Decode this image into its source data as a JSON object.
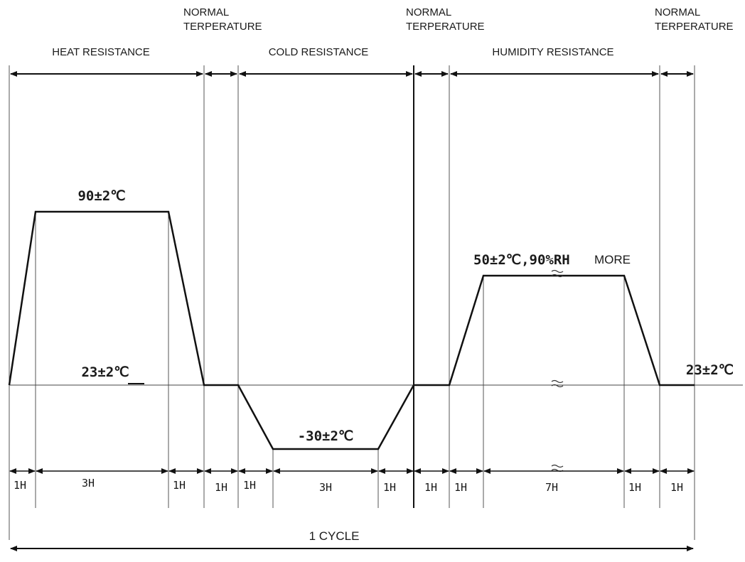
{
  "phase_labels": {
    "heat": "HEAT RESISTANCE",
    "cold": "COLD RESISTANCE",
    "humidity": "HUMIDITY RESISTANCE",
    "normal_1_line1": "NORMAL",
    "normal_1_line2": "TERPERATURE",
    "normal_2_line1": "NORMAL",
    "normal_2_line2": "TERPERATURE",
    "normal_3_line1": "NORMAL",
    "normal_3_line2": "TERPERATURE"
  },
  "temperature_labels": {
    "heat": "90±2℃",
    "ambient_left": "23±2℃",
    "cold": "-30±2℃",
    "humidity": "50±2℃,90%RH",
    "humidity_suffix": "MORE",
    "ambient_right": "23±2℃"
  },
  "durations": [
    "1H",
    "3H",
    "1H",
    "1H",
    "1H",
    "3H",
    "1H",
    "1H",
    "1H",
    "7H",
    "1H",
    "1H"
  ],
  "cycle_label": "1 CYCLE",
  "colors": {
    "line": "#111111",
    "background": "#ffffff"
  }
}
